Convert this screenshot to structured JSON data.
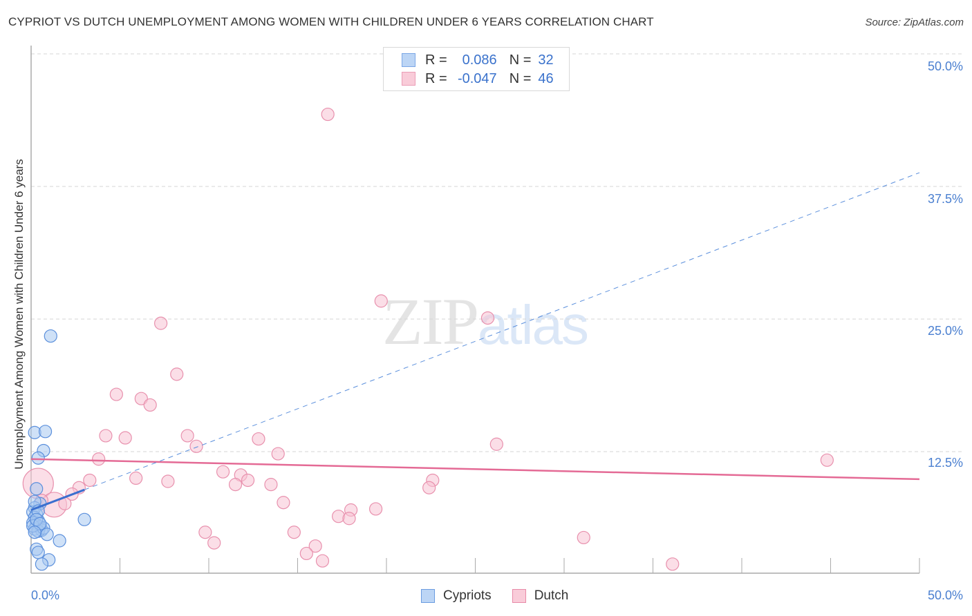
{
  "header": {
    "title": "CYPRIOT VS DUTCH UNEMPLOYMENT AMONG WOMEN WITH CHILDREN UNDER 6 YEARS CORRELATION CHART",
    "source": "Source: ZipAtlas.com"
  },
  "watermark": {
    "zip": "ZIP",
    "atlas": "atlas"
  },
  "axes": {
    "ylabel": "Unemployment Among Women with Children Under 6 years",
    "yticks": [
      "50.0%",
      "37.5%",
      "25.0%",
      "12.5%"
    ],
    "xticks": [
      "0.0%",
      "50.0%"
    ]
  },
  "legend_top": {
    "rows": [
      {
        "r_label": "R =",
        "r_value": "0.086",
        "n_label": "N =",
        "n_value": "32",
        "color": "#a8c8f0"
      },
      {
        "r_label": "R =",
        "r_value": "-0.047",
        "n_label": "N =",
        "n_value": "46",
        "color": "#f7bfd0"
      }
    ]
  },
  "legend_bottom": {
    "items": [
      {
        "label": "Cypriots",
        "color": "#a8c8f0",
        "border": "#6a9be0"
      },
      {
        "label": "Dutch",
        "color": "#f7bfd0",
        "border": "#e88aa8"
      }
    ]
  },
  "colors": {
    "cypriots_fill": "#a8c8f0",
    "cypriots_stroke": "#5b8fdc",
    "cypriots_line": "#3a6fcf",
    "dutch_fill": "#f7c3d3",
    "dutch_stroke": "#e890ad",
    "dutch_line": "#e46a95",
    "tick_text": "#4a7fd0",
    "grid": "#d5d5d5"
  },
  "chart_data": {
    "type": "scatter",
    "title": "CYPRIOT VS DUTCH UNEMPLOYMENT AMONG WOMEN WITH CHILDREN UNDER 6 YEARS CORRELATION CHART",
    "xlabel": "",
    "ylabel": "Unemployment Among Women with Children Under 6 years",
    "xlim": [
      0,
      50
    ],
    "ylim": [
      0,
      50
    ],
    "yticks": [
      12.5,
      25.0,
      37.5,
      50.0
    ],
    "grid": true,
    "legend_position": "bottom",
    "series": [
      {
        "name": "Cypriots",
        "r": 0.086,
        "n": 32,
        "trend": {
          "x0": 0,
          "y0": 7.0,
          "x1": 50,
          "y1": 38.8,
          "solid_until_x": 3.0
        },
        "points": [
          [
            1.1,
            23.4
          ],
          [
            0.2,
            14.3
          ],
          [
            0.8,
            14.4
          ],
          [
            0.7,
            12.6
          ],
          [
            0.4,
            11.9
          ],
          [
            0.3,
            9.0
          ],
          [
            0.5,
            7.6
          ],
          [
            0.2,
            7.2
          ],
          [
            0.1,
            6.8
          ],
          [
            0.3,
            6.6
          ],
          [
            0.2,
            6.3
          ],
          [
            0.4,
            6.0
          ],
          [
            0.1,
            5.8
          ],
          [
            0.3,
            5.6
          ],
          [
            0.5,
            5.4
          ],
          [
            0.2,
            5.2
          ],
          [
            0.6,
            5.1
          ],
          [
            0.4,
            5.0
          ],
          [
            0.1,
            5.5
          ],
          [
            0.7,
            5.3
          ],
          [
            3.0,
            6.1
          ],
          [
            0.9,
            4.7
          ],
          [
            1.6,
            4.1
          ],
          [
            0.3,
            3.3
          ],
          [
            0.4,
            3.0
          ],
          [
            1.0,
            2.3
          ],
          [
            0.6,
            1.9
          ],
          [
            0.2,
            7.8
          ],
          [
            0.4,
            6.9
          ],
          [
            0.3,
            6.1
          ],
          [
            0.5,
            5.7
          ],
          [
            0.2,
            4.9
          ]
        ]
      },
      {
        "name": "Dutch",
        "r": -0.047,
        "n": 46,
        "trend": {
          "x0": 0,
          "y0": 11.8,
          "x1": 50,
          "y1": 9.9
        },
        "points": [
          [
            16.7,
            44.3
          ],
          [
            19.7,
            26.7
          ],
          [
            25.7,
            25.1
          ],
          [
            7.3,
            24.6
          ],
          [
            8.2,
            19.8
          ],
          [
            4.8,
            17.9
          ],
          [
            6.2,
            17.5
          ],
          [
            6.7,
            16.9
          ],
          [
            4.2,
            14.0
          ],
          [
            5.3,
            13.8
          ],
          [
            8.8,
            14.0
          ],
          [
            9.3,
            13.0
          ],
          [
            12.8,
            13.7
          ],
          [
            13.9,
            12.3
          ],
          [
            26.2,
            13.2
          ],
          [
            44.8,
            11.7
          ],
          [
            3.8,
            11.8
          ],
          [
            10.8,
            10.6
          ],
          [
            11.8,
            10.3
          ],
          [
            5.9,
            10.0
          ],
          [
            3.3,
            9.8
          ],
          [
            7.7,
            9.7
          ],
          [
            12.2,
            9.8
          ],
          [
            11.5,
            9.4
          ],
          [
            13.5,
            9.4
          ],
          [
            22.6,
            9.8
          ],
          [
            22.4,
            9.1
          ],
          [
            2.7,
            9.1
          ],
          [
            2.3,
            8.5
          ],
          [
            14.2,
            7.7
          ],
          [
            18.0,
            7.0
          ],
          [
            19.4,
            7.1
          ],
          [
            17.3,
            6.4
          ],
          [
            17.9,
            6.2
          ],
          [
            9.8,
            4.9
          ],
          [
            14.8,
            4.9
          ],
          [
            10.3,
            3.9
          ],
          [
            31.1,
            4.4
          ],
          [
            16.0,
            3.6
          ],
          [
            15.5,
            2.9
          ],
          [
            16.4,
            2.2
          ],
          [
            36.1,
            1.9
          ],
          [
            0.4,
            9.5
          ],
          [
            1.3,
            7.5
          ],
          [
            0.6,
            7.9
          ],
          [
            1.9,
            7.6
          ]
        ]
      }
    ]
  }
}
